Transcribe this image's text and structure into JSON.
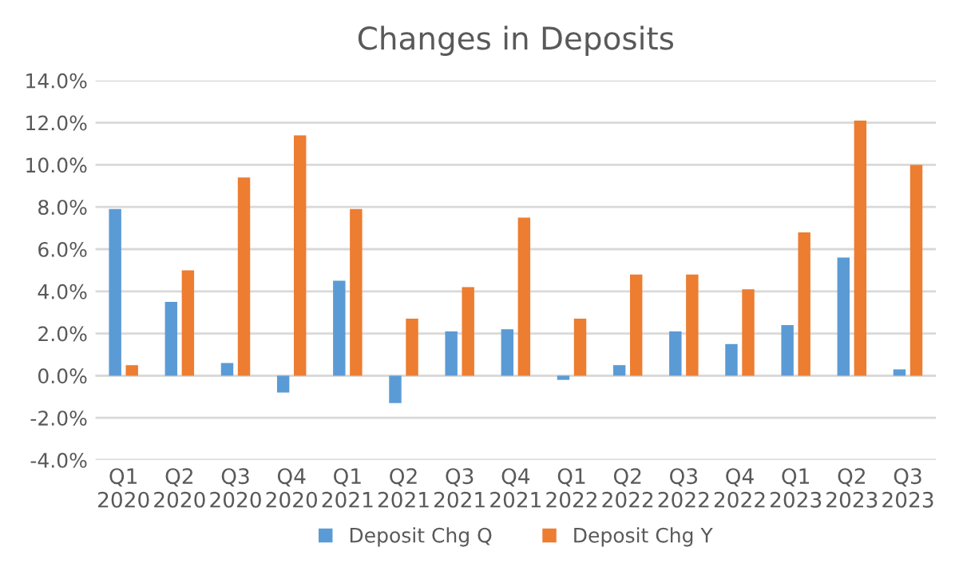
{
  "chart_data": {
    "type": "bar",
    "title": "Changes in Deposits",
    "categories": [
      "Q1\n2020",
      "Q2\n2020",
      "Q3\n2020",
      "Q4\n2020",
      "Q1\n2021",
      "Q2\n2021",
      "Q3\n2021",
      "Q4\n2021",
      "Q1\n2022",
      "Q2\n2022",
      "Q3\n2022",
      "Q4\n2022",
      "Q1\n2023",
      "Q2\n2023",
      "Q3\n2023"
    ],
    "series": [
      {
        "name": "Deposit Chg Q",
        "color": "#5b9bd5",
        "values": [
          7.9,
          3.5,
          0.6,
          -0.8,
          4.5,
          -1.3,
          2.1,
          2.2,
          -0.2,
          0.5,
          2.1,
          1.5,
          2.4,
          5.6,
          0.3
        ]
      },
      {
        "name": "Deposit Chg Y",
        "color": "#ed7d31",
        "values": [
          0.5,
          5.0,
          9.4,
          11.4,
          7.9,
          2.7,
          4.2,
          7.5,
          2.7,
          4.8,
          4.8,
          4.1,
          6.8,
          12.1,
          10.0
        ]
      }
    ],
    "ylim": [
      -4,
      14
    ],
    "yticks": [
      {
        "value": -4,
        "label": "-4.0%"
      },
      {
        "value": -2,
        "label": "-2.0%"
      },
      {
        "value": 0,
        "label": "0.0%"
      },
      {
        "value": 2,
        "label": "2.0%"
      },
      {
        "value": 4,
        "label": "4.0%"
      },
      {
        "value": 6,
        "label": "6.0%"
      },
      {
        "value": 8,
        "label": "8.0%"
      },
      {
        "value": 10,
        "label": "10.0%"
      },
      {
        "value": 12,
        "label": "12.0%"
      },
      {
        "value": 14,
        "label": "14.0%"
      }
    ],
    "grid": "y",
    "legend": "bottom"
  }
}
